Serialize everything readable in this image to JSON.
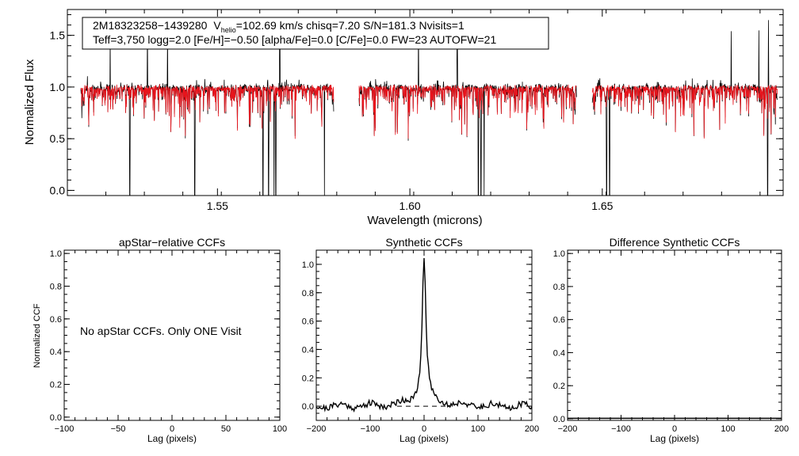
{
  "chart_data": [
    {
      "id": "spectrum",
      "type": "line",
      "xlabel": "Wavelength (microns)",
      "ylabel": "Normalized Flux",
      "xlim": [
        1.511,
        1.697
      ],
      "ylim": [
        -0.05,
        1.75
      ],
      "xticks": [
        1.55,
        1.6,
        1.65
      ],
      "xtick_labels": [
        "1.55",
        "1.60",
        "1.65"
      ],
      "yticks": [
        0.0,
        0.5,
        1.0,
        1.5
      ],
      "ytick_labels": [
        "0.0",
        "0.5",
        "1.0",
        "1.5"
      ],
      "annotation": {
        "star": "2M18323258−1439280",
        "vhelio_label": "V",
        "vhelio_sub": "helio",
        "vhelio_value": "=102.69 km/s  chisq=7.20  S/N=181.3  Nvisits=1",
        "line2": "Teff=3,750 logg=2.0 [Fe/H]=−0.50 [alpha/Fe]=0.0 [C/Fe]=0.0 FW=23 AUTOFW=21"
      },
      "segments": [
        [
          1.5145,
          1.5802
        ],
        [
          1.5868,
          1.6433
        ],
        [
          1.6474,
          1.6955
        ]
      ],
      "series": [
        {
          "name": "observed",
          "color": "#000000"
        },
        {
          "name": "model",
          "color": "#e8141c"
        }
      ],
      "deep_lines": [
        1.5272,
        1.5441,
        1.5618,
        1.5633,
        1.5647,
        1.5652,
        1.5778,
        1.6178,
        1.6185,
        1.6193,
        1.6511,
        1.6519,
        1.693
      ],
      "spikes": [
        1.5221,
        1.5318,
        1.537,
        1.5662,
        1.6022,
        1.6123,
        1.6435,
        1.6835,
        1.6907,
        1.6932
      ]
    },
    {
      "id": "apstar-ccf",
      "type": "line",
      "title": "apStar−relative CCFs",
      "xlabel": "Lag (pixels)",
      "ylabel": "Normalized CCF",
      "xlim": [
        -100,
        100
      ],
      "ylim": [
        -0.02,
        1.02
      ],
      "xticks": [
        -100,
        -50,
        0,
        50,
        100
      ],
      "xtick_labels": [
        "−100",
        "−50",
        "0",
        "50",
        "100"
      ],
      "yticks": [
        0.0,
        0.2,
        0.4,
        0.6,
        0.8,
        1.0
      ],
      "ytick_labels": [
        "0.0",
        "0.2",
        "0.4",
        "0.6",
        "0.8",
        "1.0"
      ],
      "message": "No apStar CCFs.  Only ONE Visit"
    },
    {
      "id": "synthetic-ccf",
      "type": "line",
      "title": "Synthetic CCFs",
      "xlabel": "Lag (pixels)",
      "xlim": [
        -200,
        200
      ],
      "ylim": [
        -0.1,
        1.1
      ],
      "xticks": [
        -200,
        -100,
        0,
        100,
        200
      ],
      "xtick_labels": [
        "−200",
        "−100",
        "0",
        "100",
        "200"
      ],
      "yticks": [
        0.0,
        0.2,
        0.4,
        0.6,
        0.8,
        1.0
      ],
      "ytick_labels": [
        "0.0",
        "0.2",
        "0.4",
        "0.6",
        "0.8",
        "1.0"
      ],
      "peak_lag": 0,
      "peak_value": 1.0,
      "baseline": 0.0
    },
    {
      "id": "difference-ccf",
      "type": "line",
      "title": "Difference Synthetic CCFs",
      "xlabel": "Lag (pixels)",
      "xlim": [
        -200,
        200
      ],
      "ylim": [
        -0.01,
        1.02
      ],
      "xticks": [
        -200,
        -100,
        0,
        100,
        200
      ],
      "xtick_labels": [
        "−200",
        "−100",
        "0",
        "100",
        "200"
      ],
      "yticks": [
        0.0,
        0.2,
        0.4,
        0.6,
        0.8,
        1.0
      ],
      "ytick_labels": [
        "0.0",
        "0.2",
        "0.4",
        "0.6",
        "0.8",
        "1.0"
      ],
      "value": 0.0
    }
  ]
}
